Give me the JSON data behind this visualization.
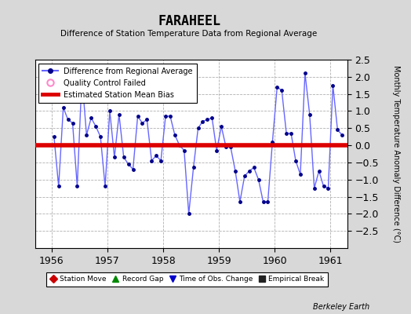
{
  "title": "FARAHEEL",
  "subtitle": "Difference of Station Temperature Data from Regional Average",
  "ylabel_right": "Monthly Temperature Anomaly Difference (°C)",
  "ylim": [
    -3,
    2.5
  ],
  "yticks": [
    -2.5,
    -2,
    -1.5,
    -1,
    -0.5,
    0,
    0.5,
    1,
    1.5,
    2,
    2.5
  ],
  "xlim": [
    1955.7,
    1961.3
  ],
  "xticks": [
    1956,
    1957,
    1958,
    1959,
    1960,
    1961
  ],
  "bias": 0.0,
  "background_color": "#d8d8d8",
  "plot_bg_color": "#ffffff",
  "grid_color": "#b0b0b0",
  "line_color": "#6666ff",
  "marker_color": "#00008b",
  "bias_color": "#dd0000",
  "watermark": "Berkeley Earth",
  "data_x": [
    1956.042,
    1956.125,
    1956.208,
    1956.292,
    1956.375,
    1956.458,
    1956.542,
    1956.625,
    1956.708,
    1956.792,
    1956.875,
    1956.958,
    1957.042,
    1957.125,
    1957.208,
    1957.292,
    1957.375,
    1957.458,
    1957.542,
    1957.625,
    1957.708,
    1957.792,
    1957.875,
    1957.958,
    1958.042,
    1958.125,
    1958.208,
    1958.292,
    1958.375,
    1958.458,
    1958.542,
    1958.625,
    1958.708,
    1958.792,
    1958.875,
    1958.958,
    1959.042,
    1959.125,
    1959.208,
    1959.292,
    1959.375,
    1959.458,
    1959.542,
    1959.625,
    1959.708,
    1959.792,
    1959.875,
    1959.958,
    1960.042,
    1960.125,
    1960.208,
    1960.292,
    1960.375,
    1960.458,
    1960.542,
    1960.625,
    1960.708,
    1960.792,
    1960.875,
    1960.958,
    1961.042,
    1961.125,
    1961.208
  ],
  "data_y": [
    0.25,
    -1.2,
    1.1,
    0.75,
    0.65,
    -1.2,
    2.0,
    0.3,
    0.8,
    0.55,
    0.25,
    -1.2,
    1.0,
    -0.35,
    0.9,
    -0.35,
    -0.55,
    -0.7,
    0.85,
    0.65,
    0.75,
    -0.45,
    -0.3,
    -0.45,
    0.85,
    0.85,
    0.3,
    0.0,
    -0.15,
    -2.0,
    -0.65,
    0.5,
    0.7,
    0.75,
    0.8,
    -0.15,
    0.55,
    -0.05,
    -0.05,
    -0.75,
    -1.65,
    -0.9,
    -0.75,
    -0.65,
    -1.0,
    -1.65,
    -1.65,
    0.1,
    1.7,
    1.6,
    0.35,
    0.35,
    -0.45,
    -0.85,
    2.1,
    0.9,
    -1.25,
    -0.75,
    -1.2,
    -1.25,
    1.75,
    0.45,
    0.3
  ],
  "top_legend": [
    {
      "label": "Difference from Regional Average",
      "color": "#6666ff",
      "marker_color": "#00008b",
      "type": "line"
    },
    {
      "label": "Quality Control Failed",
      "edge_color": "#ff88cc",
      "type": "circle"
    },
    {
      "label": "Estimated Station Mean Bias",
      "color": "#dd0000",
      "type": "thick_line"
    }
  ],
  "bottom_legend": [
    {
      "label": "Station Move",
      "color": "#cc0000",
      "marker": "D"
    },
    {
      "label": "Record Gap",
      "color": "#008800",
      "marker": "^"
    },
    {
      "label": "Time of Obs. Change",
      "color": "#0000cc",
      "marker": "v"
    },
    {
      "label": "Empirical Break",
      "color": "#222222",
      "marker": "s"
    }
  ]
}
